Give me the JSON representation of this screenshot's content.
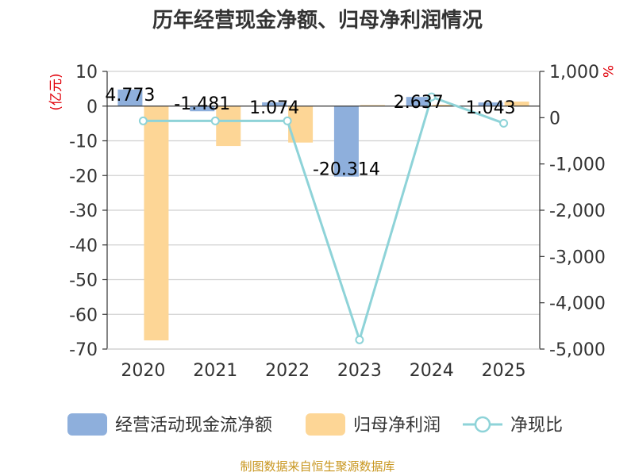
{
  "chart_data": {
    "type": "bar+line",
    "title": "历年经营现金净额、归母净利润情况",
    "categories": [
      "2020",
      "2021",
      "2022",
      "2023",
      "2024",
      "2025"
    ],
    "left_axis": {
      "unit": "(亿元)",
      "ticks": [
        "10",
        "0",
        "-10",
        "-20",
        "-30",
        "-40",
        "-50",
        "-60",
        "-70"
      ],
      "range": [
        -70,
        10
      ]
    },
    "right_axis": {
      "unit": "%",
      "ticks": [
        "1,000",
        "0",
        "-1,000",
        "-2,000",
        "-3,000",
        "-4,000",
        "-5,000"
      ],
      "range": [
        -5000,
        1000
      ]
    },
    "series": [
      {
        "name": "经营活动现金流净额",
        "type": "bar",
        "axis": "left",
        "color": "#8eafdc",
        "values": [
          4.773,
          -1.481,
          1.074,
          -20.314,
          2.637,
          1.043
        ],
        "labels": [
          "4.773",
          "-1.481",
          "1.074",
          "-20.314",
          "2.637",
          "1.043"
        ]
      },
      {
        "name": "归母净利润",
        "type": "bar",
        "axis": "left",
        "color": "#fdd696",
        "values": [
          -67.5,
          -11.5,
          -10.5,
          0.3,
          0.4,
          1.3
        ]
      },
      {
        "name": "净现比",
        "type": "line",
        "axis": "right",
        "color": "#8ed3d8",
        "values": [
          -70,
          -70,
          -70,
          -4800,
          450,
          -120
        ]
      }
    ],
    "source": "制图数据来自恒生聚源数据库"
  }
}
